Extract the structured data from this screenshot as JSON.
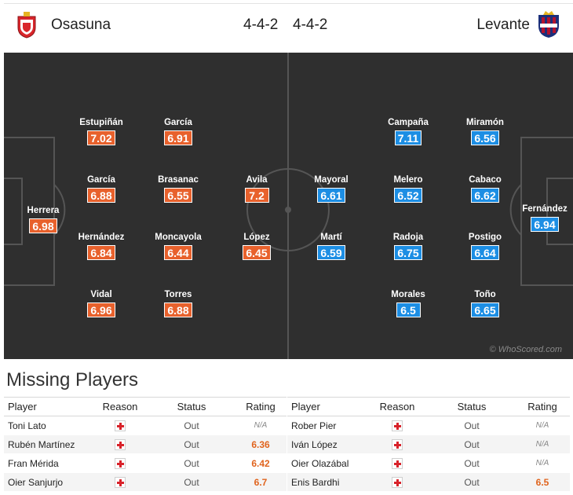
{
  "header": {
    "home_team": "Osasuna",
    "home_formation": "4-4-2",
    "away_formation": "4-4-2",
    "away_team": "Levante",
    "home_badge_icon": "osasuna-crest-icon",
    "away_badge_icon": "levante-crest-icon"
  },
  "colors": {
    "home_rating": "#e8612c",
    "away_rating": "#1c8ee4",
    "pitch": "#2f2f2f"
  },
  "pitch": {
    "home_players": [
      {
        "name": "Herrera",
        "rating": "6.98"
      },
      {
        "name": "Estupiñán",
        "rating": "7.02"
      },
      {
        "name": "García",
        "rating": "6.88"
      },
      {
        "name": "Hernández",
        "rating": "6.84"
      },
      {
        "name": "Vidal",
        "rating": "6.96"
      },
      {
        "name": "García",
        "rating": "6.91"
      },
      {
        "name": "Brasanac",
        "rating": "6.55"
      },
      {
        "name": "Moncayola",
        "rating": "6.44"
      },
      {
        "name": "Torres",
        "rating": "6.88"
      },
      {
        "name": "Avila",
        "rating": "7.2"
      },
      {
        "name": "López",
        "rating": "6.45"
      }
    ],
    "away_players": [
      {
        "name": "Mayoral",
        "rating": "6.61"
      },
      {
        "name": "Martí",
        "rating": "6.59"
      },
      {
        "name": "Campaña",
        "rating": "7.11"
      },
      {
        "name": "Melero",
        "rating": "6.52"
      },
      {
        "name": "Radoja",
        "rating": "6.75"
      },
      {
        "name": "Morales",
        "rating": "6.5"
      },
      {
        "name": "Miramón",
        "rating": "6.56"
      },
      {
        "name": "Cabaco",
        "rating": "6.62"
      },
      {
        "name": "Postigo",
        "rating": "6.64"
      },
      {
        "name": "Toño",
        "rating": "6.65"
      },
      {
        "name": "Fernández",
        "rating": "6.94"
      }
    ],
    "watermark": "© WhoScored.com"
  },
  "missing": {
    "title": "Missing Players",
    "columns": {
      "player": "Player",
      "reason": "Reason",
      "status": "Status",
      "rating": "Rating"
    },
    "home": [
      {
        "player": "Toni Lato",
        "reason_icon": "injury-cross-icon",
        "status": "Out",
        "rating": "N/A"
      },
      {
        "player": "Rubén Martínez",
        "reason_icon": "injury-cross-icon",
        "status": "Out",
        "rating": "6.36"
      },
      {
        "player": "Fran Mérida",
        "reason_icon": "injury-cross-icon",
        "status": "Out",
        "rating": "6.42"
      },
      {
        "player": "Oier Sanjurjo",
        "reason_icon": "injury-cross-icon",
        "status": "Out",
        "rating": "6.7"
      }
    ],
    "away": [
      {
        "player": "Rober Pier",
        "reason_icon": "injury-cross-icon",
        "status": "Out",
        "rating": "N/A"
      },
      {
        "player": "Iván López",
        "reason_icon": "injury-cross-icon",
        "status": "Out",
        "rating": "N/A"
      },
      {
        "player": "Oier Olazábal",
        "reason_icon": "injury-cross-icon",
        "status": "Out",
        "rating": "N/A"
      },
      {
        "player": "Enis Bardhi",
        "reason_icon": "injury-cross-icon",
        "status": "Out",
        "rating": "6.5"
      }
    ]
  }
}
